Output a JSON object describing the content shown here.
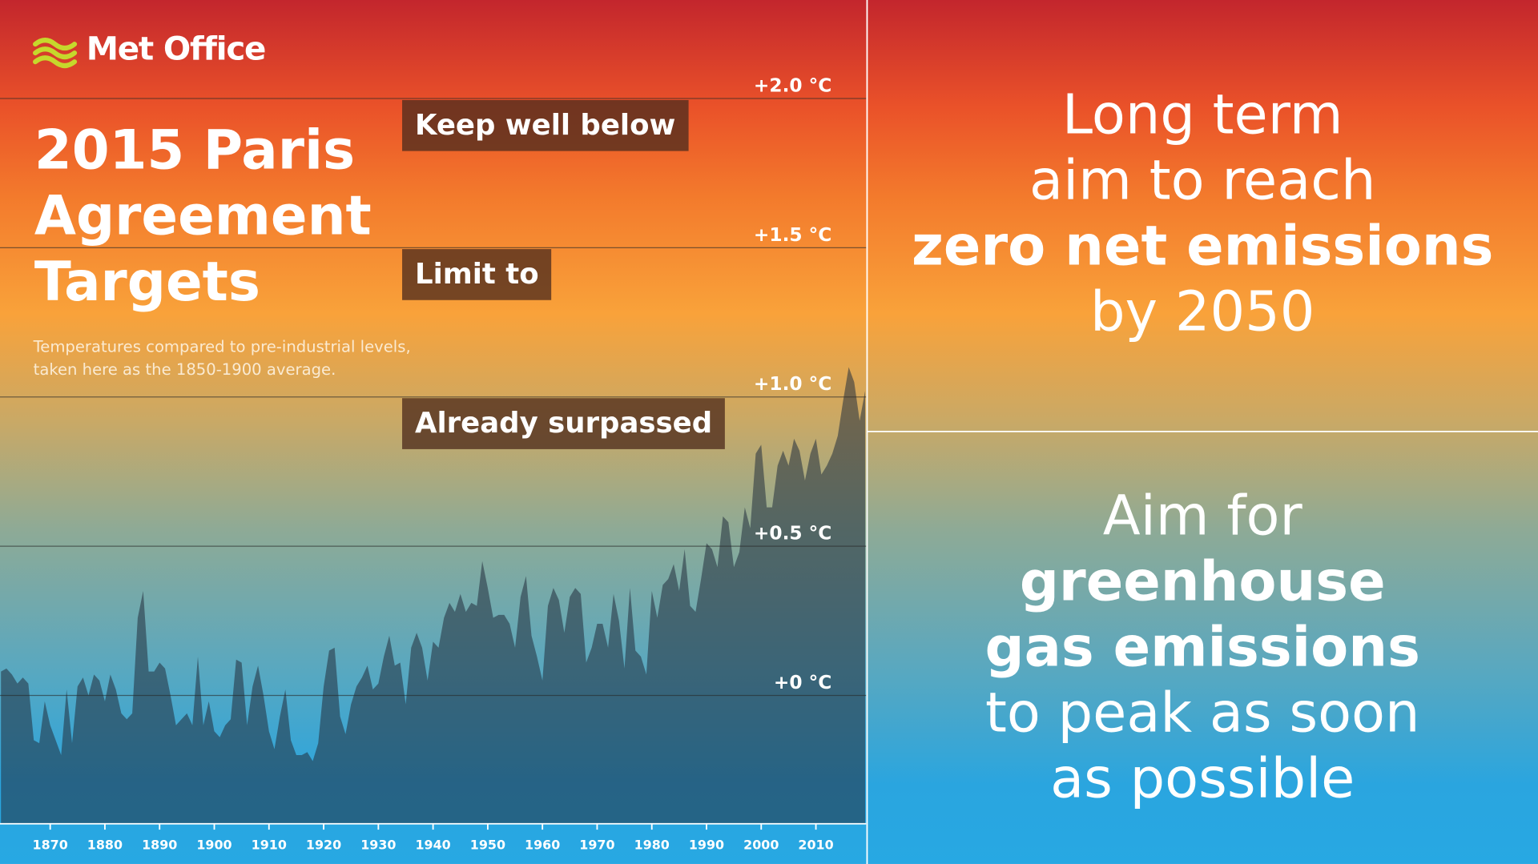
{
  "logo": "Met Office",
  "chart_data": {
    "type": "area",
    "title": "2015 Paris Agreement Targets",
    "subtitle": "Temperatures compared to pre-industrial levels, taken here as the 1850-1900 average.",
    "annotations": [
      "Keep well below",
      "Limit to",
      "Already surpassed"
    ],
    "x": [
      1861,
      1862,
      1863,
      1864,
      1865,
      1866,
      1867,
      1868,
      1869,
      1870,
      1871,
      1872,
      1873,
      1874,
      1875,
      1876,
      1877,
      1878,
      1879,
      1880,
      1881,
      1882,
      1883,
      1884,
      1885,
      1886,
      1887,
      1888,
      1889,
      1890,
      1891,
      1892,
      1893,
      1894,
      1895,
      1896,
      1897,
      1898,
      1899,
      1900,
      1901,
      1902,
      1903,
      1904,
      1905,
      1906,
      1907,
      1908,
      1909,
      1910,
      1911,
      1912,
      1913,
      1914,
      1915,
      1916,
      1917,
      1918,
      1919,
      1920,
      1921,
      1922,
      1923,
      1924,
      1925,
      1926,
      1927,
      1928,
      1929,
      1930,
      1931,
      1932,
      1933,
      1934,
      1935,
      1936,
      1937,
      1938,
      1939,
      1940,
      1941,
      1942,
      1943,
      1944,
      1945,
      1946,
      1947,
      1948,
      1949,
      1950,
      1951,
      1952,
      1953,
      1954,
      1955,
      1956,
      1957,
      1958,
      1959,
      1960,
      1961,
      1962,
      1963,
      1964,
      1965,
      1966,
      1967,
      1968,
      1969,
      1970,
      1971,
      1972,
      1973,
      1974,
      1975,
      1976,
      1977,
      1978,
      1979,
      1980,
      1981,
      1982,
      1983,
      1984,
      1985,
      1986,
      1987,
      1988,
      1989,
      1990,
      1991,
      1992,
      1993,
      1994,
      1995,
      1996,
      1997,
      1998,
      1999,
      2000,
      2001,
      2002,
      2003,
      2004,
      2005,
      2006,
      2007,
      2008,
      2009,
      2010,
      2011,
      2012,
      2013,
      2014,
      2015,
      2016,
      2017,
      2018,
      2019
    ],
    "values": [
      0.08,
      0.09,
      0.07,
      0.04,
      0.06,
      0.04,
      -0.15,
      -0.16,
      -0.02,
      -0.1,
      -0.15,
      -0.2,
      0.02,
      -0.16,
      0.03,
      0.06,
      0.0,
      0.07,
      0.05,
      -0.02,
      0.07,
      0.02,
      -0.06,
      -0.08,
      -0.06,
      0.26,
      0.35,
      0.08,
      0.08,
      0.11,
      0.09,
      0.0,
      -0.1,
      -0.08,
      -0.06,
      -0.1,
      0.13,
      -0.1,
      -0.02,
      -0.12,
      -0.14,
      -0.1,
      -0.08,
      0.12,
      0.11,
      -0.1,
      0.03,
      0.1,
      0.0,
      -0.12,
      -0.18,
      -0.07,
      0.02,
      -0.15,
      -0.2,
      -0.2,
      -0.19,
      -0.22,
      -0.16,
      0.03,
      0.15,
      0.16,
      -0.07,
      -0.13,
      -0.03,
      0.03,
      0.06,
      0.1,
      0.02,
      0.04,
      0.13,
      0.2,
      0.1,
      0.11,
      -0.03,
      0.16,
      0.21,
      0.16,
      0.05,
      0.18,
      0.16,
      0.26,
      0.31,
      0.28,
      0.34,
      0.28,
      0.31,
      0.3,
      0.45,
      0.36,
      0.26,
      0.27,
      0.27,
      0.24,
      0.16,
      0.33,
      0.4,
      0.2,
      0.13,
      0.05,
      0.3,
      0.36,
      0.32,
      0.21,
      0.33,
      0.36,
      0.34,
      0.11,
      0.16,
      0.24,
      0.24,
      0.16,
      0.34,
      0.25,
      0.09,
      0.36,
      0.15,
      0.13,
      0.07,
      0.35,
      0.26,
      0.37,
      0.39,
      0.44,
      0.35,
      0.49,
      0.3,
      0.28,
      0.39,
      0.51,
      0.49,
      0.43,
      0.6,
      0.58,
      0.43,
      0.48,
      0.63,
      0.56,
      0.81,
      0.84,
      0.63,
      0.63,
      0.77,
      0.82,
      0.77,
      0.86,
      0.82,
      0.72,
      0.81,
      0.86,
      0.74,
      0.77,
      0.81,
      0.87,
      0.99,
      1.1,
      1.05,
      0.92,
      1.02
    ],
    "xlim": [
      1861,
      2019
    ],
    "xticks": [
      1870,
      1880,
      1890,
      1900,
      1910,
      1920,
      1930,
      1940,
      1950,
      1960,
      1970,
      1980,
      1990,
      2000,
      2010
    ],
    "ylim": [
      -0.43,
      2.33
    ],
    "yticks": [
      {
        "value": 0,
        "label": "+0 °C"
      },
      {
        "value": 0.5,
        "label": "+0.5 °C"
      },
      {
        "value": 1,
        "label": "+1.0 °C"
      },
      {
        "value": 1.5,
        "label": "+1.5 °C"
      },
      {
        "value": 2,
        "label": "+2.0 °C"
      }
    ],
    "grid": true,
    "color": "rgba(35,45,60,0.55)"
  },
  "panels": [
    {
      "lines": [
        "Long term",
        "aim to reach",
        "zero net emissions",
        "by 2050"
      ]
    },
    {
      "lines": [
        "Aim for",
        "greenhouse",
        "gas emissions",
        "to peak as soon",
        "as possible"
      ]
    }
  ]
}
